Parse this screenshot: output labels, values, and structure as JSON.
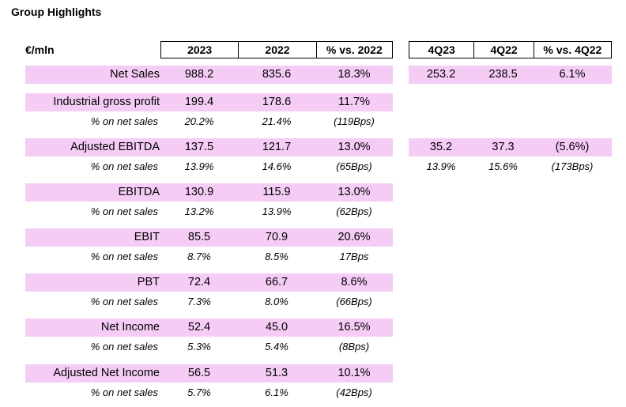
{
  "title": "Group Highlights",
  "unit": "€/mln",
  "headers_main": [
    "2023",
    "2022",
    "% vs. 2022"
  ],
  "headers_q": [
    "4Q23",
    "4Q22",
    "% vs. 4Q22"
  ],
  "sub_label": "% on net sales",
  "rows": [
    {
      "label": "Net Sales",
      "main": [
        "988.2",
        "835.6",
        "18.3%"
      ],
      "q": [
        "253.2",
        "238.5",
        "6.1%"
      ],
      "sub": null,
      "subq": null
    },
    {
      "label": "Industrial gross profit",
      "main": [
        "199.4",
        "178.6",
        "11.7%"
      ],
      "q": null,
      "sub": [
        "20.2%",
        "21.4%",
        "(119Bps)"
      ],
      "subq": null
    },
    {
      "label": "Adjusted EBITDA",
      "main": [
        "137.5",
        "121.7",
        "13.0%"
      ],
      "q": [
        "35.2",
        "37.3",
        "(5.6%)"
      ],
      "sub": [
        "13.9%",
        "14.6%",
        "(65Bps)"
      ],
      "subq": [
        "13.9%",
        "15.6%",
        "(173Bps)"
      ]
    },
    {
      "label": "EBITDA",
      "main": [
        "130.9",
        "115.9",
        "13.0%"
      ],
      "q": null,
      "sub": [
        "13.2%",
        "13.9%",
        "(62Bps)"
      ],
      "subq": null
    },
    {
      "label": "EBIT",
      "main": [
        "85.5",
        "70.9",
        "20.6%"
      ],
      "q": null,
      "sub": [
        "8.7%",
        "8.5%",
        "17Bps"
      ],
      "subq": null
    },
    {
      "label": "PBT",
      "main": [
        "72.4",
        "66.7",
        "8.6%"
      ],
      "q": null,
      "sub": [
        "7.3%",
        "8.0%",
        "(66Bps)"
      ],
      "subq": null
    },
    {
      "label": "Net Income",
      "main": [
        "52.4",
        "45.0",
        "16.5%"
      ],
      "q": null,
      "sub": [
        "5.3%",
        "5.4%",
        "(8Bps)"
      ],
      "subq": null
    },
    {
      "label": "Adjusted Net Income",
      "main": [
        "56.5",
        "51.3",
        "10.1%"
      ],
      "q": null,
      "sub": [
        "5.7%",
        "6.1%",
        "(42Bps)"
      ],
      "subq": null
    }
  ]
}
